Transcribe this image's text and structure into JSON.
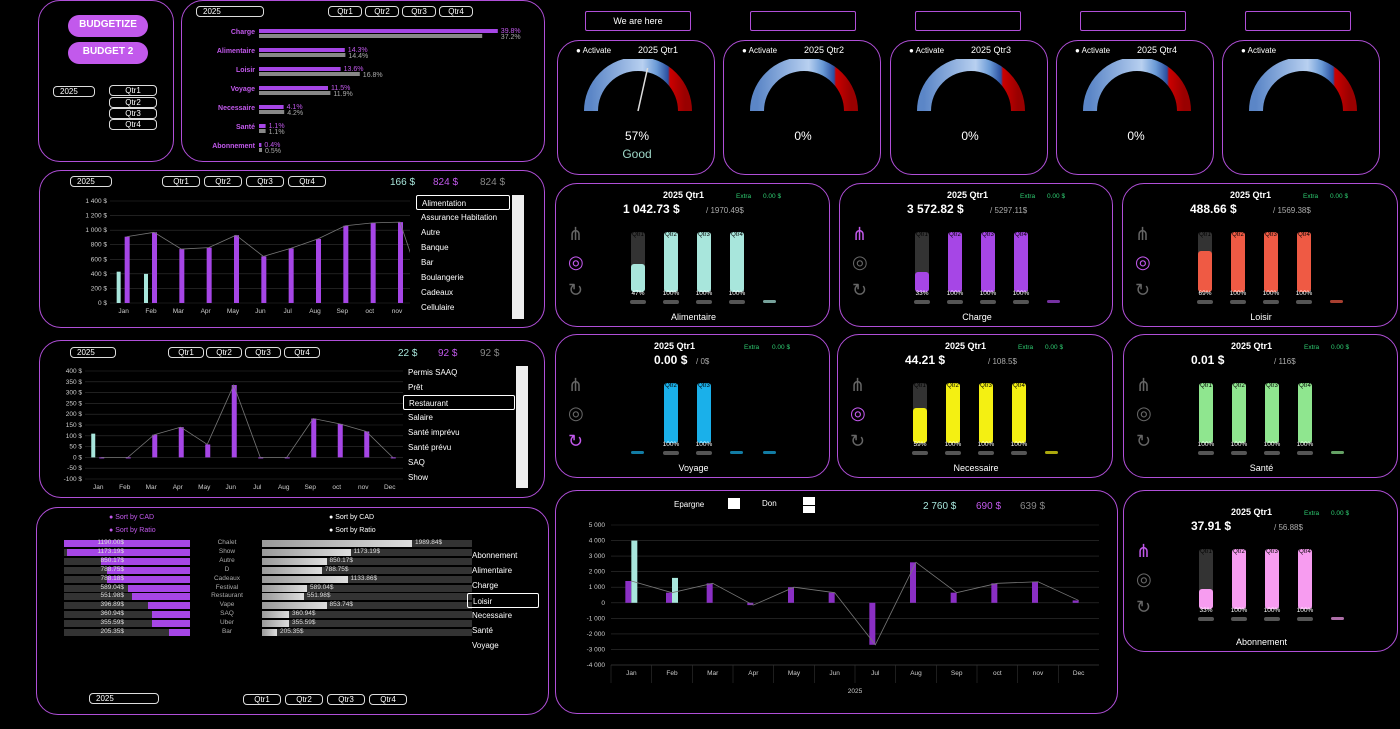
{
  "budgetize_label": "BUDGETIZE",
  "budget2_label": "BUDGET 2",
  "year": "2025",
  "quarters": [
    "Qtr1",
    "Qtr2",
    "Qtr3",
    "Qtr4"
  ],
  "top_boxes": [
    "We are here",
    "",
    "",
    "",
    ""
  ],
  "colors": {
    "accent": "#c259ec",
    "border": "#b04fd8",
    "bg": "#000000"
  },
  "hbar": {
    "type": "bar",
    "categories": [
      "Charge",
      "Alimentaire",
      "Loisir",
      "Voyage",
      "Necessaire",
      "Santé",
      "Abonnement"
    ],
    "series": [
      {
        "values": [
          39.8,
          14.3,
          13.6,
          11.5,
          4.1,
          1.1,
          0.4
        ]
      },
      {
        "values": [
          37.2,
          14.4,
          16.8,
          11.9,
          4.2,
          1.1,
          0.5
        ]
      }
    ],
    "labels_a": [
      "39.8%",
      "14.3%",
      "13.6%",
      "11.5%",
      "4.1%",
      "1.1%",
      "0.4%"
    ],
    "labels_b": [
      "37.2%",
      "14.4%",
      "16.8%",
      "11.9%",
      "4.2%",
      "1.1%",
      "0.5%"
    ]
  },
  "gauges": [
    {
      "activate": "Activate",
      "title": "2025 Qtr1",
      "value": "57%",
      "status": "Good",
      "fraction": 0.57
    },
    {
      "activate": "Activate",
      "title": "2025 Qtr2",
      "value": "0%",
      "status": "",
      "fraction": 0
    },
    {
      "activate": "Activate",
      "title": "2025 Qtr3",
      "value": "0%",
      "status": "",
      "fraction": 0
    },
    {
      "activate": "Activate",
      "title": "2025 Qtr4",
      "value": "0%",
      "status": "",
      "fraction": 0
    },
    {
      "activate": "Activate",
      "title": "",
      "value": "",
      "status": "",
      "fraction": 0
    }
  ],
  "monthly1": {
    "totals": [
      "166 $",
      "824 $",
      "824 $"
    ],
    "y_ticks": [
      "1 400 $",
      "1 200 $",
      "1 000 $",
      "800 $",
      "600 $",
      "400 $",
      "200 $",
      "0 $"
    ],
    "months": [
      "Jan",
      "Feb",
      "Mar",
      "Apr",
      "May",
      "Jun",
      "Jul",
      "Aug",
      "Sep",
      "oct",
      "nov",
      "Dec"
    ],
    "list": [
      "Alimentation",
      "Assurance Habitation",
      "Autre",
      "Banque",
      "Bar",
      "Boulangerie",
      "Cadeaux",
      "Cellulaire"
    ],
    "chart_data": {
      "type": "bar",
      "categories": [
        "Jan",
        "Feb",
        "Mar",
        "Apr",
        "May",
        "Jun",
        "Jul",
        "Aug",
        "Sep",
        "oct",
        "nov",
        "Dec"
      ],
      "series": [
        {
          "values": [
            430,
            400,
            0,
            0,
            0,
            0,
            0,
            0,
            0,
            0,
            0,
            0
          ]
        },
        {
          "values": [
            910,
            970,
            740,
            760,
            930,
            640,
            750,
            880,
            1060,
            1100,
            1110,
            0
          ]
        }
      ],
      "ylim": [
        0,
        1400
      ]
    }
  },
  "monthly2": {
    "totals": [
      "22 $",
      "92 $",
      "92 $"
    ],
    "y_ticks": [
      "400 $",
      "350 $",
      "300 $",
      "250 $",
      "200 $",
      "150 $",
      "100 $",
      "50 $",
      "0 $",
      "-50 $",
      "-100 $"
    ],
    "months": [
      "Jan",
      "Feb",
      "Mar",
      "Apr",
      "May",
      "Jun",
      "Jul",
      "Aug",
      "Sep",
      "oct",
      "nov",
      "Dec"
    ],
    "list": [
      "Permis SAAQ",
      "Prêt",
      "Restaurant",
      "Salaire",
      "Santé imprévu",
      "Santé prévu",
      "SAQ",
      "Show"
    ],
    "chart_data": {
      "type": "bar",
      "categories": [
        "Jan",
        "Feb",
        "Mar",
        "Apr",
        "May",
        "Jun",
        "Jul",
        "Aug",
        "Sep",
        "oct",
        "nov",
        "Dec"
      ],
      "series": [
        {
          "values": [
            110,
            0,
            0,
            0,
            0,
            0,
            0,
            0,
            0,
            0,
            0,
            0
          ]
        },
        {
          "values": [
            0,
            0,
            105,
            140,
            60,
            335,
            0,
            0,
            180,
            155,
            120,
            0
          ]
        }
      ],
      "ylim": [
        -100,
        400
      ]
    }
  },
  "sort": {
    "cad": "Sort by CAD",
    "ratio": "Sort by Ratio",
    "left_values": [
      "1190.00$",
      "1173.19$",
      "850.17$",
      "788.75$",
      "788.18$",
      "589.04$",
      "551.98$",
      "396.89$",
      "360.94$",
      "355.59$",
      "205.35$"
    ],
    "left_fracs": [
      1,
      0.98,
      0.71,
      0.66,
      0.66,
      0.49,
      0.46,
      0.33,
      0.3,
      0.3,
      0.17
    ],
    "names": [
      "Chalet",
      "Show",
      "Autre",
      "D",
      "Cadeaux",
      "Festival",
      "Restaurant",
      "Vape",
      "SAQ",
      "Uber",
      "Bar"
    ],
    "right_values": [
      "1989.84$",
      "1173.19$",
      "850.17$",
      "788.75$",
      "1133.86$",
      "589.04$",
      "551.98$",
      "853.74$",
      "360.94$",
      "355.59$",
      "205.35$"
    ],
    "right_fracs": [
      1,
      0.59,
      0.43,
      0.4,
      0.57,
      0.3,
      0.28,
      0.43,
      0.18,
      0.18,
      0.1
    ],
    "list": [
      "Abonnement",
      "Alimentaire",
      "Charge",
      "Loisir",
      "Necessaire",
      "Santé",
      "Voyage"
    ]
  },
  "cats": [
    {
      "title": "2025 Qtr1",
      "extra": "Extra",
      "extra_val": "0.00 $",
      "amount": "1 042.73 $",
      "of": "/ 1970.49$",
      "name": "Alimentaire",
      "color": "#a8e6dc",
      "q": [
        "Qtr1",
        "Qtr2",
        "Qtr3",
        "Qtr4"
      ],
      "pct": [
        "47%",
        "100%",
        "100%",
        "100%"
      ],
      "fill": [
        0.47,
        1,
        1,
        1
      ]
    },
    {
      "title": "2025 Qtr1",
      "extra": "Extra",
      "extra_val": "0.00 $",
      "amount": "3 572.82 $",
      "of": "/ 5297.11$",
      "name": "Charge",
      "color": "#a646e6",
      "q": [
        "Qtr1",
        "Qtr2",
        "Qtr3",
        "Qtr4"
      ],
      "pct": [
        "33%",
        "100%",
        "100%",
        "100%"
      ],
      "fill": [
        0.33,
        1,
        1,
        1
      ]
    },
    {
      "title": "2025 Qtr1",
      "extra": "Extra",
      "extra_val": "0.00 $",
      "amount": "488.66 $",
      "of": "/ 1569.38$",
      "name": "Loisir",
      "color": "#ef5a44",
      "q": [
        "Qtr1",
        "Qtr2",
        "Qtr3",
        "Qtr4"
      ],
      "pct": [
        "69%",
        "100%",
        "100%",
        "100%"
      ],
      "fill": [
        0.69,
        1,
        1,
        1
      ]
    },
    {
      "title": "2025 Qtr1",
      "extra": "Extra",
      "extra_val": "0.00 $",
      "amount": "0.00 $",
      "of": "/ 0$",
      "name": "Voyage",
      "color": "#1ab0ea",
      "q": [
        "",
        "Qtr2",
        "Qtr3",
        ""
      ],
      "pct": [
        "",
        "100%",
        "100%",
        ""
      ],
      "fill": [
        0,
        1,
        1,
        0
      ]
    },
    {
      "title": "2025 Qtr1",
      "extra": "Extra",
      "extra_val": "0.00 $",
      "amount": "44.21 $",
      "of": "/ 108.5$",
      "name": "Necessaire",
      "color": "#f4f012",
      "q": [
        "Qtr1",
        "Qtr2",
        "Qtr3",
        "Qtr4"
      ],
      "pct": [
        "59%",
        "100%",
        "100%",
        "100%"
      ],
      "fill": [
        0.59,
        1,
        1,
        1
      ]
    },
    {
      "title": "2025 Qtr1",
      "extra": "Extra",
      "extra_val": "0.00 $",
      "amount": "0.01 $",
      "of": "/ 116$",
      "name": "Santé",
      "color": "#8fe68f",
      "q": [
        "Qtr1",
        "Qtr2",
        "Qtr3",
        "Qtr4"
      ],
      "pct": [
        "100%",
        "100%",
        "100%",
        "100%"
      ],
      "fill": [
        1,
        1,
        1,
        1
      ]
    },
    {
      "title": "2025 Qtr1",
      "extra": "Extra",
      "extra_val": "0.00 $",
      "amount": "37.91 $",
      "of": "/ 56.88$",
      "name": "Abonnement",
      "color": "#f79cf0",
      "q": [
        "Qtr1",
        "Qtr2",
        "Qtr3",
        "Qtr4"
      ],
      "pct": [
        "33%",
        "100%",
        "100%",
        "100%"
      ],
      "fill": [
        0.33,
        1,
        1,
        1
      ]
    }
  ],
  "savings": {
    "epargne": "Epargne",
    "don": "Don",
    "totals": [
      "2 760 $",
      "690 $",
      "639 $"
    ],
    "y_ticks": [
      "5 000",
      "4 000",
      "3 000",
      "2 000",
      "1 000",
      "0",
      "-1 000",
      "-2 000",
      "-3 000",
      "-4 000"
    ],
    "months": [
      "Jan",
      "Feb",
      "Mar",
      "Apr",
      "May",
      "Jun",
      "Jul",
      "Aug",
      "Sep",
      "oct",
      "nov",
      "Dec"
    ],
    "xlabel": "2025",
    "chart_data": {
      "type": "bar",
      "categories": [
        "Jan",
        "Feb",
        "Mar",
        "Apr",
        "May",
        "Jun",
        "Jul",
        "Aug",
        "Sep",
        "oct",
        "nov",
        "Dec"
      ],
      "series": [
        {
          "values": [
            1400,
            650,
            1250,
            -150,
            1000,
            650,
            -2700,
            2600,
            650,
            1250,
            1350,
            150
          ]
        },
        {
          "values": [
            4000,
            1600,
            0,
            0,
            0,
            0,
            0,
            0,
            0,
            0,
            0,
            0
          ]
        }
      ],
      "ylim": [
        -4000,
        5000
      ]
    }
  }
}
